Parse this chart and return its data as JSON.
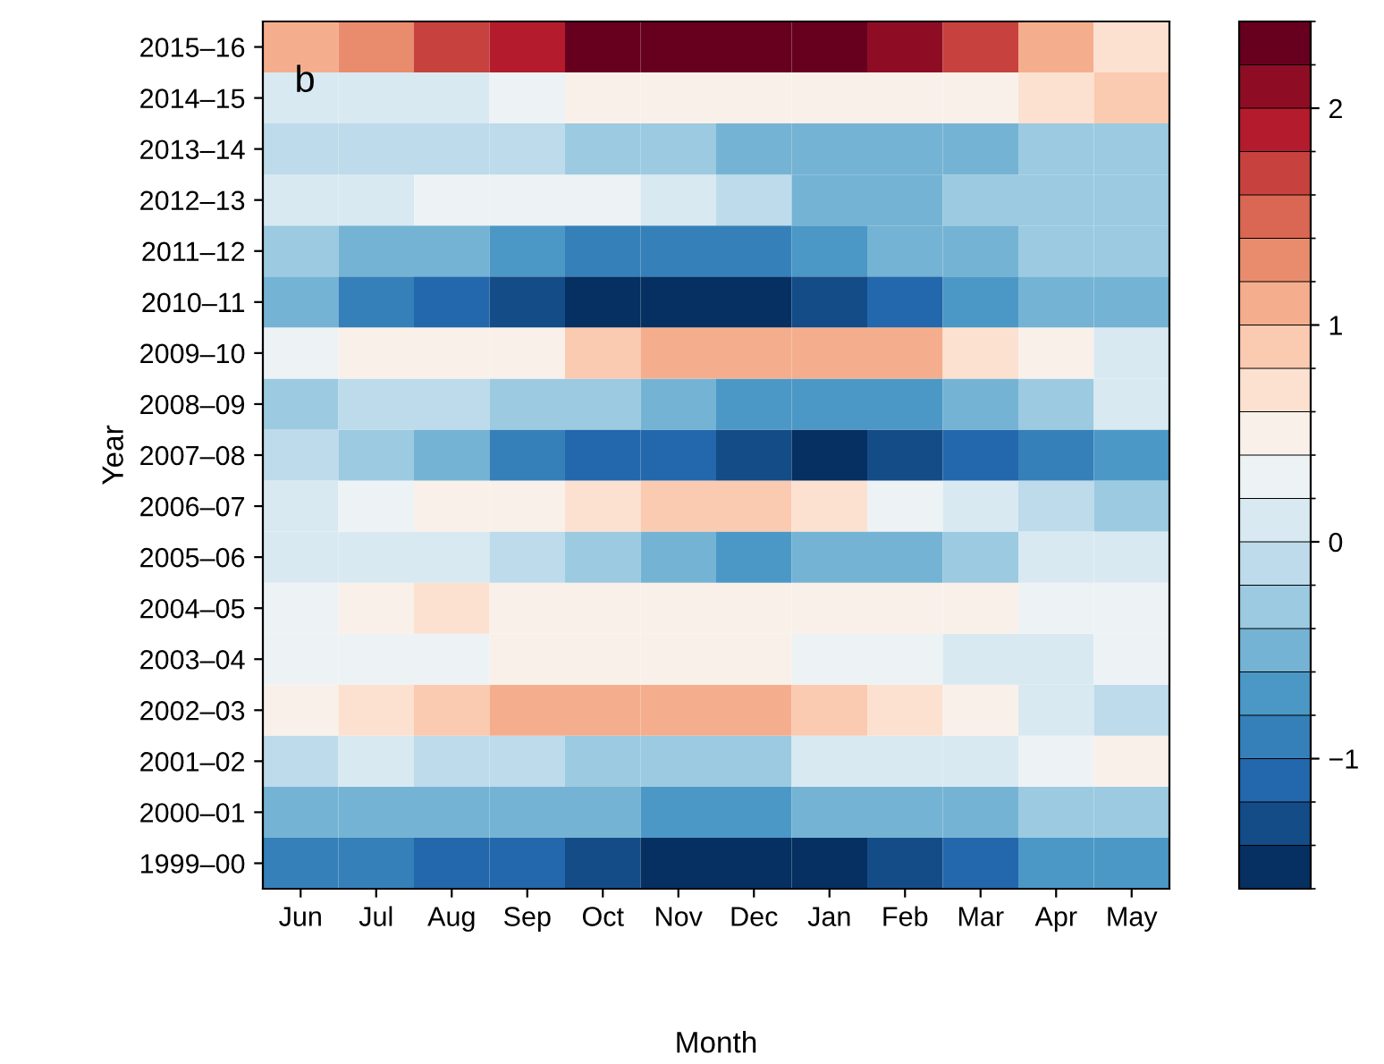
{
  "chart_data": {
    "type": "heatmap",
    "xlabel": "Month",
    "ylabel": "Year",
    "categories": [
      "Jun",
      "Jul",
      "Aug",
      "Sep",
      "Oct",
      "Nov",
      "Dec",
      "Jan",
      "Feb",
      "Mar",
      "Apr",
      "May"
    ],
    "y_categories": [
      "2015–16",
      "2014–15",
      "2013–14",
      "2012–13",
      "2011–12",
      "2010–11",
      "2009–10",
      "2008–09",
      "2007–08",
      "2006–07",
      "2005–06",
      "2004–05",
      "2003–04",
      "2002–03",
      "2001–02",
      "2000–01",
      "1999–00"
    ],
    "cells": [
      [
        1.0,
        1.3,
        1.6,
        1.9,
        2.2,
        2.4,
        2.4,
        2.3,
        2.0,
        1.6,
        1.1,
        0.8
      ],
      [
        0.1,
        0.0,
        0.0,
        0.2,
        0.4,
        0.5,
        0.5,
        0.5,
        0.5,
        0.6,
        0.7,
        0.9
      ],
      [
        -0.1,
        -0.1,
        -0.1,
        -0.1,
        -0.3,
        -0.3,
        -0.4,
        -0.5,
        -0.4,
        -0.4,
        -0.3,
        -0.2
      ],
      [
        0.1,
        0.1,
        0.3,
        0.3,
        0.3,
        0.1,
        -0.1,
        -0.4,
        -0.4,
        -0.3,
        -0.3,
        -0.3
      ],
      [
        -0.2,
        -0.4,
        -0.6,
        -0.7,
        -0.9,
        -1.0,
        -0.9,
        -0.8,
        -0.6,
        -0.5,
        -0.3,
        -0.2
      ],
      [
        -0.5,
        -0.9,
        -1.2,
        -1.4,
        -1.5,
        -1.5,
        -1.5,
        -1.4,
        -1.1,
        -0.8,
        -0.6,
        -0.4
      ],
      [
        0.3,
        0.4,
        0.5,
        0.6,
        0.9,
        1.1,
        1.2,
        1.2,
        1.0,
        0.7,
        0.4,
        0.1
      ],
      [
        -0.3,
        -0.1,
        -0.1,
        -0.2,
        -0.3,
        -0.5,
        -0.7,
        -0.8,
        -0.7,
        -0.5,
        -0.2,
        0.1
      ],
      [
        -0.1,
        -0.3,
        -0.6,
        -0.9,
        -1.1,
        -1.2,
        -1.4,
        -1.5,
        -1.4,
        -1.1,
        -0.9,
        -0.8
      ],
      [
        0.1,
        0.2,
        0.4,
        0.6,
        0.8,
        0.9,
        0.9,
        0.7,
        0.3,
        0.0,
        -0.1,
        -0.2
      ],
      [
        0.1,
        0.0,
        0.0,
        -0.1,
        -0.3,
        -0.5,
        -0.7,
        -0.6,
        -0.4,
        -0.2,
        0.0,
        0.1
      ],
      [
        0.3,
        0.5,
        0.7,
        0.6,
        0.6,
        0.6,
        0.6,
        0.5,
        0.4,
        0.4,
        0.3,
        0.3
      ],
      [
        0.2,
        0.3,
        0.3,
        0.4,
        0.4,
        0.4,
        0.4,
        0.3,
        0.2,
        0.1,
        0.1,
        0.2
      ],
      [
        0.6,
        0.8,
        0.9,
        1.0,
        1.1,
        1.2,
        1.1,
        0.9,
        0.7,
        0.4,
        0.1,
        -0.1
      ],
      [
        -0.1,
        0.0,
        -0.1,
        -0.1,
        -0.2,
        -0.2,
        -0.2,
        0.0,
        0.1,
        0.1,
        0.2,
        0.4
      ],
      [
        -0.6,
        -0.5,
        -0.4,
        -0.4,
        -0.5,
        -0.7,
        -0.7,
        -0.6,
        -0.5,
        -0.4,
        -0.3,
        -0.2
      ],
      [
        -1.0,
        -1.0,
        -1.1,
        -1.2,
        -1.4,
        -1.5,
        -1.6,
        -1.6,
        -1.4,
        -1.1,
        -0.8,
        -0.7
      ]
    ],
    "clim": [
      -1.6,
      2.4
    ],
    "cticks": [
      -1,
      0,
      1,
      2
    ],
    "annotations": [
      "b"
    ]
  }
}
